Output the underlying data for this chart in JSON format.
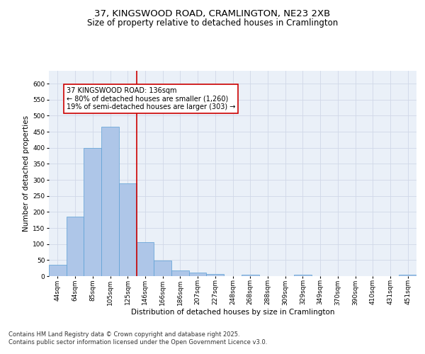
{
  "title_line1": "37, KINGSWOOD ROAD, CRAMLINGTON, NE23 2XB",
  "title_line2": "Size of property relative to detached houses in Cramlington",
  "xlabel": "Distribution of detached houses by size in Cramlington",
  "ylabel": "Number of detached properties",
  "bar_values": [
    35,
    185,
    400,
    465,
    290,
    105,
    48,
    17,
    11,
    6,
    0,
    4,
    0,
    0,
    4,
    0,
    1,
    0,
    0,
    0,
    4
  ],
  "bin_labels": [
    "44sqm",
    "64sqm",
    "85sqm",
    "105sqm",
    "125sqm",
    "146sqm",
    "166sqm",
    "186sqm",
    "207sqm",
    "227sqm",
    "248sqm",
    "268sqm",
    "288sqm",
    "309sqm",
    "329sqm",
    "349sqm",
    "370sqm",
    "390sqm",
    "410sqm",
    "431sqm",
    "451sqm"
  ],
  "bar_color": "#aec6e8",
  "bar_edge_color": "#5a9fd4",
  "grid_color": "#d0d8e8",
  "bg_color": "#eaf0f8",
  "vline_x": 4.5,
  "vline_color": "#cc0000",
  "annotation_title": "37 KINGSWOOD ROAD: 136sqm",
  "annotation_line1": "← 80% of detached houses are smaller (1,260)",
  "annotation_line2": "19% of semi-detached houses are larger (303) →",
  "annotation_box_color": "#cc0000",
  "ylim": [
    0,
    640
  ],
  "yticks": [
    0,
    50,
    100,
    150,
    200,
    250,
    300,
    350,
    400,
    450,
    500,
    550,
    600
  ],
  "footnote": "Contains HM Land Registry data © Crown copyright and database right 2025.\nContains public sector information licensed under the Open Government Licence v3.0.",
  "title_fontsize": 9.5,
  "subtitle_fontsize": 8.5,
  "axis_label_fontsize": 7.5,
  "tick_fontsize": 6.5,
  "annot_fontsize": 7,
  "footnote_fontsize": 6
}
